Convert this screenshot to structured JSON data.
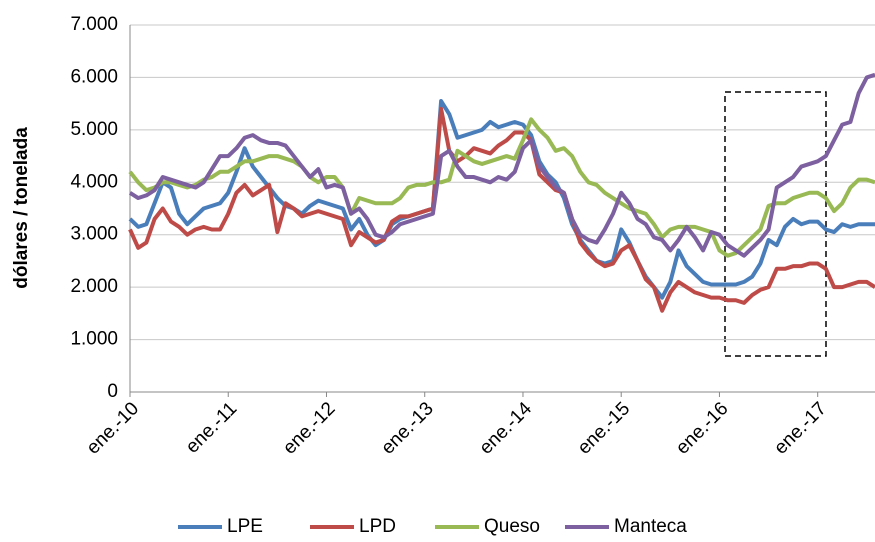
{
  "chart_data": {
    "type": "line",
    "y_label": "dólares / tonelada",
    "categories": [
      "ene.-10",
      null,
      null,
      null,
      null,
      null,
      null,
      null,
      null,
      null,
      null,
      null,
      "ene.-11",
      null,
      null,
      null,
      null,
      null,
      null,
      null,
      null,
      null,
      null,
      null,
      "ene.-12",
      null,
      null,
      null,
      null,
      null,
      null,
      null,
      null,
      null,
      null,
      null,
      "ene.-13",
      null,
      null,
      null,
      null,
      null,
      null,
      null,
      null,
      null,
      null,
      null,
      "ene.-14",
      null,
      null,
      null,
      null,
      null,
      null,
      null,
      null,
      null,
      null,
      null,
      "ene.-15",
      null,
      null,
      null,
      null,
      null,
      null,
      null,
      null,
      null,
      null,
      null,
      "ene.-16",
      null,
      null,
      null,
      null,
      null,
      null,
      null,
      null,
      null,
      null,
      null,
      "ene.-17",
      null,
      null,
      null,
      null,
      null,
      null,
      null
    ],
    "series": [
      {
        "name": "LPE",
        "color": "#4a7ebb",
        "values": [
          3300,
          3150,
          3200,
          3600,
          4000,
          3900,
          3400,
          3200,
          3350,
          3500,
          3550,
          3600,
          3800,
          4200,
          4650,
          4300,
          4100,
          3900,
          3700,
          3550,
          3500,
          3400,
          3550,
          3650,
          3600,
          3550,
          3500,
          3100,
          3300,
          3000,
          2800,
          2900,
          3200,
          3300,
          3350,
          3400,
          3450,
          3500,
          5550,
          5300,
          4850,
          4900,
          4950,
          5000,
          5150,
          5050,
          5100,
          5150,
          5100,
          4900,
          4400,
          4150,
          4000,
          3700,
          3200,
          2900,
          2700,
          2500,
          2450,
          2500,
          3100,
          2850,
          2500,
          2200,
          2000,
          1800,
          2100,
          2700,
          2400,
          2250,
          2100,
          2050,
          2050,
          2050,
          2050,
          2100,
          2200,
          2450,
          2900,
          2800,
          3150,
          3300,
          3200,
          3250,
          3250,
          3100,
          3050,
          3200,
          3150,
          3200,
          3200,
          3200
        ]
      },
      {
        "name": "LPD",
        "color": "#be4b48",
        "values": [
          3100,
          2750,
          2850,
          3300,
          3500,
          3250,
          3150,
          3000,
          3100,
          3150,
          3100,
          3100,
          3400,
          3800,
          3950,
          3750,
          3850,
          3950,
          3050,
          3600,
          3500,
          3350,
          3400,
          3450,
          3400,
          3350,
          3300,
          2800,
          3050,
          2950,
          2850,
          2900,
          3250,
          3350,
          3350,
          3400,
          3450,
          3500,
          5400,
          4600,
          4400,
          4500,
          4650,
          4600,
          4550,
          4700,
          4800,
          4950,
          4950,
          4800,
          4150,
          4000,
          3850,
          3800,
          3300,
          2850,
          2650,
          2500,
          2400,
          2450,
          2700,
          2800,
          2500,
          2150,
          2000,
          1550,
          1900,
          2100,
          2000,
          1900,
          1850,
          1800,
          1800,
          1750,
          1750,
          1700,
          1850,
          1950,
          2000,
          2350,
          2350,
          2400,
          2400,
          2450,
          2450,
          2350,
          2000,
          2000,
          2050,
          2100,
          2100,
          2000
        ]
      },
      {
        "name": "Queso",
        "color": "#98b954",
        "values": [
          4200,
          4000,
          3850,
          3900,
          4000,
          4000,
          3950,
          3900,
          3950,
          4050,
          4100,
          4200,
          4200,
          4300,
          4400,
          4400,
          4450,
          4500,
          4500,
          4450,
          4400,
          4300,
          4100,
          4000,
          4100,
          4100,
          3900,
          3400,
          3700,
          3650,
          3600,
          3600,
          3600,
          3700,
          3900,
          3950,
          3950,
          4000,
          4000,
          4050,
          4600,
          4500,
          4400,
          4350,
          4400,
          4450,
          4500,
          4450,
          4800,
          5200,
          5000,
          4850,
          4600,
          4650,
          4500,
          4200,
          4000,
          3950,
          3800,
          3700,
          3600,
          3500,
          3450,
          3400,
          3200,
          2950,
          3100,
          3150,
          3150,
          3150,
          3100,
          3050,
          2700,
          2600,
          2650,
          2800,
          2950,
          3100,
          3550,
          3600,
          3600,
          3700,
          3750,
          3800,
          3800,
          3700,
          3450,
          3600,
          3900,
          4050,
          4050,
          4000
        ]
      },
      {
        "name": "Manteca",
        "color": "#7d60a0",
        "values": [
          3800,
          3700,
          3750,
          3850,
          4100,
          4050,
          4000,
          3950,
          3900,
          4000,
          4250,
          4500,
          4500,
          4650,
          4850,
          4900,
          4800,
          4750,
          4750,
          4700,
          4500,
          4300,
          4100,
          4250,
          3900,
          3950,
          3900,
          3400,
          3500,
          3300,
          3000,
          2950,
          3050,
          3200,
          3250,
          3300,
          3350,
          3400,
          4500,
          4600,
          4300,
          4100,
          4100,
          4050,
          4000,
          4100,
          4050,
          4200,
          4650,
          4800,
          4300,
          4100,
          3900,
          3800,
          3300,
          3000,
          2900,
          2850,
          3100,
          3400,
          3800,
          3600,
          3300,
          3200,
          2950,
          2900,
          2700,
          2900,
          3150,
          2950,
          2700,
          3050,
          3000,
          2800,
          2700,
          2600,
          2750,
          2900,
          3100,
          3900,
          4000,
          4100,
          4300,
          4350,
          4400,
          4500,
          4800,
          5100,
          5150,
          5700,
          6000,
          6050
        ]
      }
    ],
    "ylim": [
      0,
      7000
    ],
    "yticks": [
      0,
      {
        "value": 1000,
        "label": "1.000"
      },
      {
        "value": 2000,
        "label": "2.000"
      },
      {
        "value": 3000,
        "label": "3.000"
      },
      {
        "value": 4000,
        "label": "4.000"
      },
      {
        "value": 5000,
        "label": "5.000"
      },
      {
        "value": 6000,
        "label": "6.000"
      },
      {
        "value": 7000,
        "label": "7.000"
      }
    ],
    "grid": true
  }
}
